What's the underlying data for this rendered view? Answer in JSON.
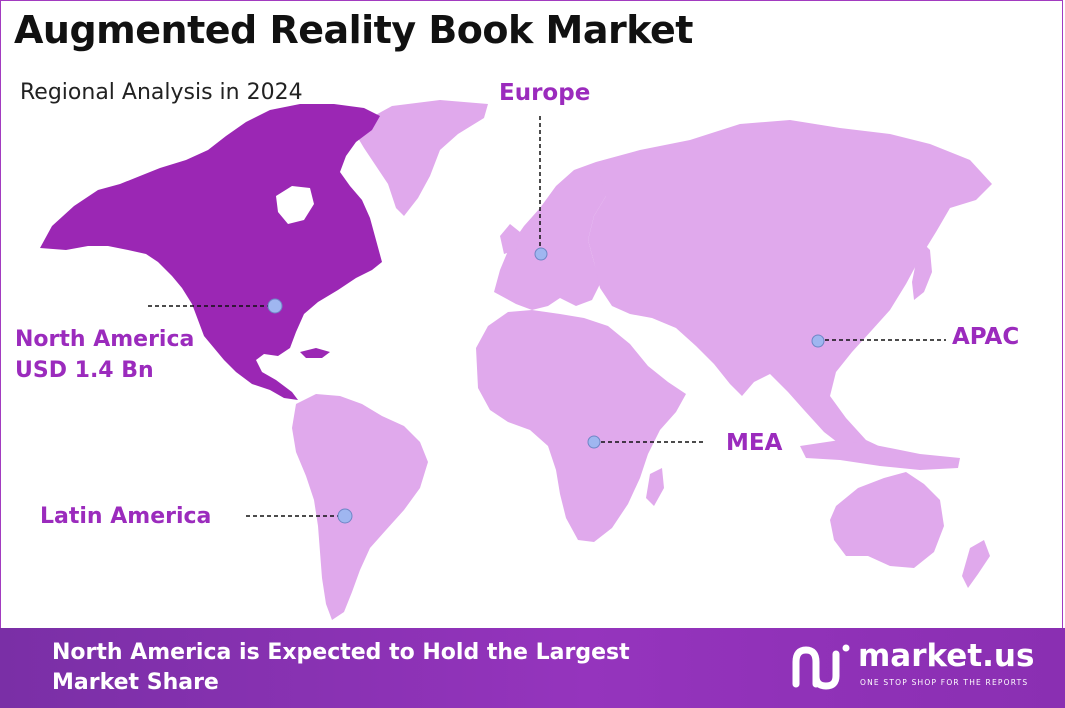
{
  "header": {
    "title": "Augmented Reality Book Market",
    "subtitle": "Regional Analysis in 2024"
  },
  "regions": [
    {
      "id": "europe",
      "label_line1": "Europe",
      "label_line2": ""
    },
    {
      "id": "north-america",
      "label_line1": "North America",
      "label_line2": "USD 1.4 Bn",
      "highlighted": true
    },
    {
      "id": "apac",
      "label_line1": "APAC",
      "label_line2": ""
    },
    {
      "id": "mea",
      "label_line1": "MEA",
      "label_line2": ""
    },
    {
      "id": "latin-america",
      "label_line1": "Latin America",
      "label_line2": ""
    }
  ],
  "colors": {
    "highlight_region": "#9b27b4",
    "other_regions": "#e0a9ec",
    "label": "#9b2bbd",
    "marker": "#9fb6f0"
  },
  "footer": {
    "headline_line1": "North America is Expected to Hold the Largest",
    "headline_line2": "Market Share",
    "brand": "market.us",
    "tagline": "ONE STOP SHOP FOR THE REPORTS"
  }
}
